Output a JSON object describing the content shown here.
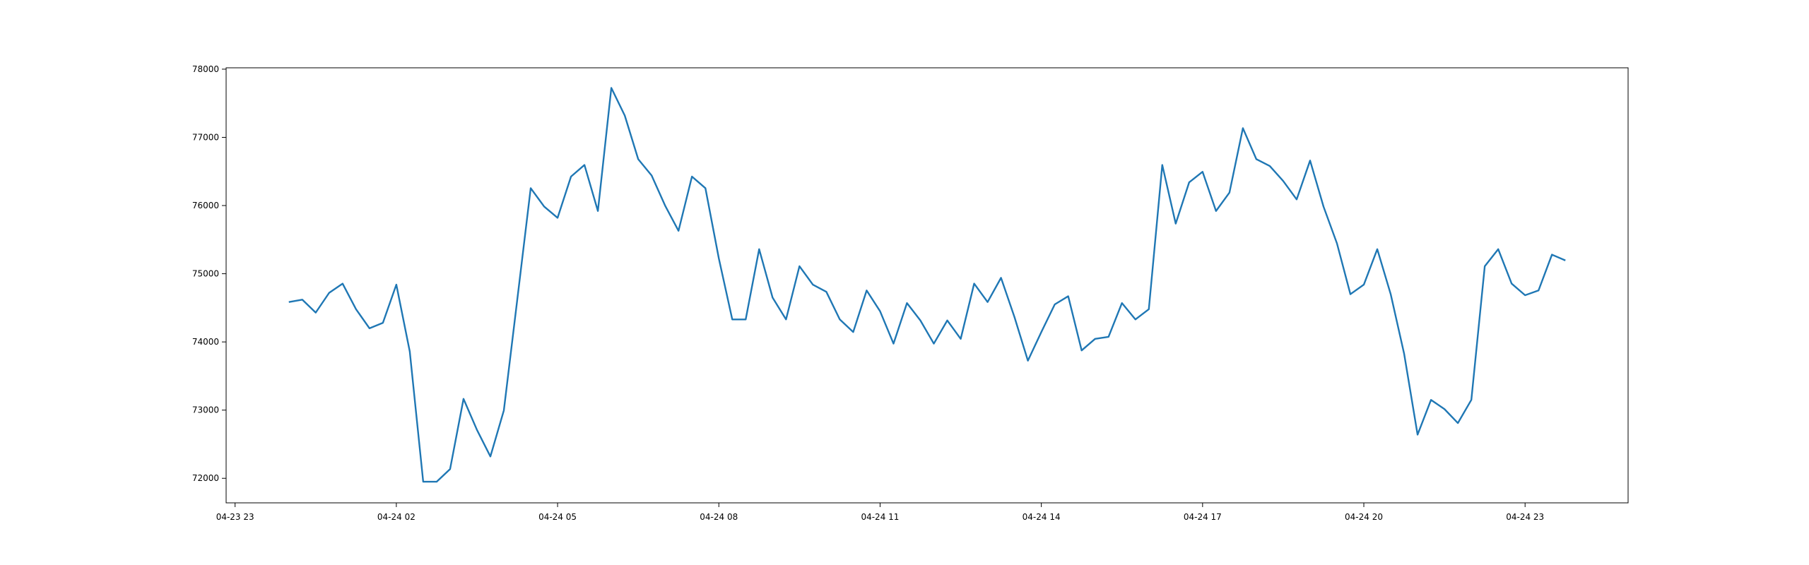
{
  "chart_data": {
    "type": "line",
    "x": [
      "04-24 00:00",
      "04-24 00:15",
      "04-24 00:30",
      "04-24 00:45",
      "04-24 01:00",
      "04-24 01:15",
      "04-24 01:30",
      "04-24 01:45",
      "04-24 02:00",
      "04-24 02:15",
      "04-24 02:30",
      "04-24 02:45",
      "04-24 03:00",
      "04-24 03:15",
      "04-24 03:30",
      "04-24 03:45",
      "04-24 04:00",
      "04-24 04:15",
      "04-24 04:30",
      "04-24 04:45",
      "04-24 05:00",
      "04-24 05:15",
      "04-24 05:30",
      "04-24 05:45",
      "04-24 06:00",
      "04-24 06:15",
      "04-24 06:30",
      "04-24 06:45",
      "04-24 07:00",
      "04-24 07:15",
      "04-24 07:30",
      "04-24 07:45",
      "04-24 08:00",
      "04-24 08:15",
      "04-24 08:30",
      "04-24 08:45",
      "04-24 09:00",
      "04-24 09:15",
      "04-24 09:30",
      "04-24 09:45",
      "04-24 10:00",
      "04-24 10:15",
      "04-24 10:30",
      "04-24 10:45",
      "04-24 11:00",
      "04-24 11:15",
      "04-24 11:30",
      "04-24 11:45",
      "04-24 12:00",
      "04-24 12:15",
      "04-24 12:30",
      "04-24 12:45",
      "04-24 13:00",
      "04-24 13:15",
      "04-24 13:30",
      "04-24 13:45",
      "04-24 14:00",
      "04-24 14:15",
      "04-24 14:30",
      "04-24 14:45",
      "04-24 15:00",
      "04-24 15:15",
      "04-24 15:30",
      "04-24 15:45",
      "04-24 16:00",
      "04-24 16:15",
      "04-24 16:30",
      "04-24 16:45",
      "04-24 17:00",
      "04-24 17:15",
      "04-24 17:30",
      "04-24 17:45",
      "04-24 18:00",
      "04-24 18:15",
      "04-24 18:30",
      "04-24 18:45",
      "04-24 19:00",
      "04-24 19:15",
      "04-24 19:30",
      "04-24 19:45",
      "04-24 20:00",
      "04-24 20:15",
      "04-24 20:30",
      "04-24 20:45",
      "04-24 21:00",
      "04-24 21:15",
      "04-24 21:30",
      "04-24 21:45",
      "04-24 22:00",
      "04-24 22:15",
      "04-24 22:30",
      "04-24 22:45",
      "04-24 23:00",
      "04-24 23:15",
      "04-24 23:30",
      "04-24 23:45"
    ],
    "values": [
      74585,
      74620,
      74430,
      74720,
      74855,
      74480,
      74200,
      74280,
      74840,
      73860,
      71950,
      71950,
      72135,
      73165,
      72710,
      72320,
      72995,
      74620,
      76255,
      75985,
      75820,
      76425,
      76595,
      75920,
      77725,
      77320,
      76680,
      76440,
      76000,
      75630,
      76425,
      76255,
      75225,
      74330,
      74330,
      75360,
      74650,
      74330,
      75110,
      74840,
      74735,
      74330,
      74145,
      74755,
      74450,
      73975,
      74570,
      74315,
      73975,
      74315,
      74045,
      74855,
      74585,
      74940,
      74365,
      73725,
      74145,
      74550,
      74670,
      73875,
      74045,
      74075,
      74570,
      74330,
      74480,
      76595,
      75735,
      76340,
      76495,
      75920,
      76190,
      77135,
      76680,
      76580,
      76360,
      76090,
      76660,
      75985,
      75445,
      74700,
      74840,
      75360,
      74700,
      73825,
      72640,
      73150,
      73015,
      72810,
      73150,
      75110,
      75360,
      74855,
      74685,
      74755,
      75280,
      75195
    ],
    "color": "#1f77b4",
    "xlim": [
      "04-23 22:50",
      "04-25 00:55"
    ],
    "xticks": [
      "04-23 23",
      "04-24 02",
      "04-24 05",
      "04-24 08",
      "04-24 11",
      "04-24 14",
      "04-24 17",
      "04-24 20",
      "04-24 23"
    ],
    "ylim": [
      71640,
      78020
    ],
    "yticks": [
      72000,
      73000,
      74000,
      75000,
      76000,
      77000,
      78000
    ]
  }
}
